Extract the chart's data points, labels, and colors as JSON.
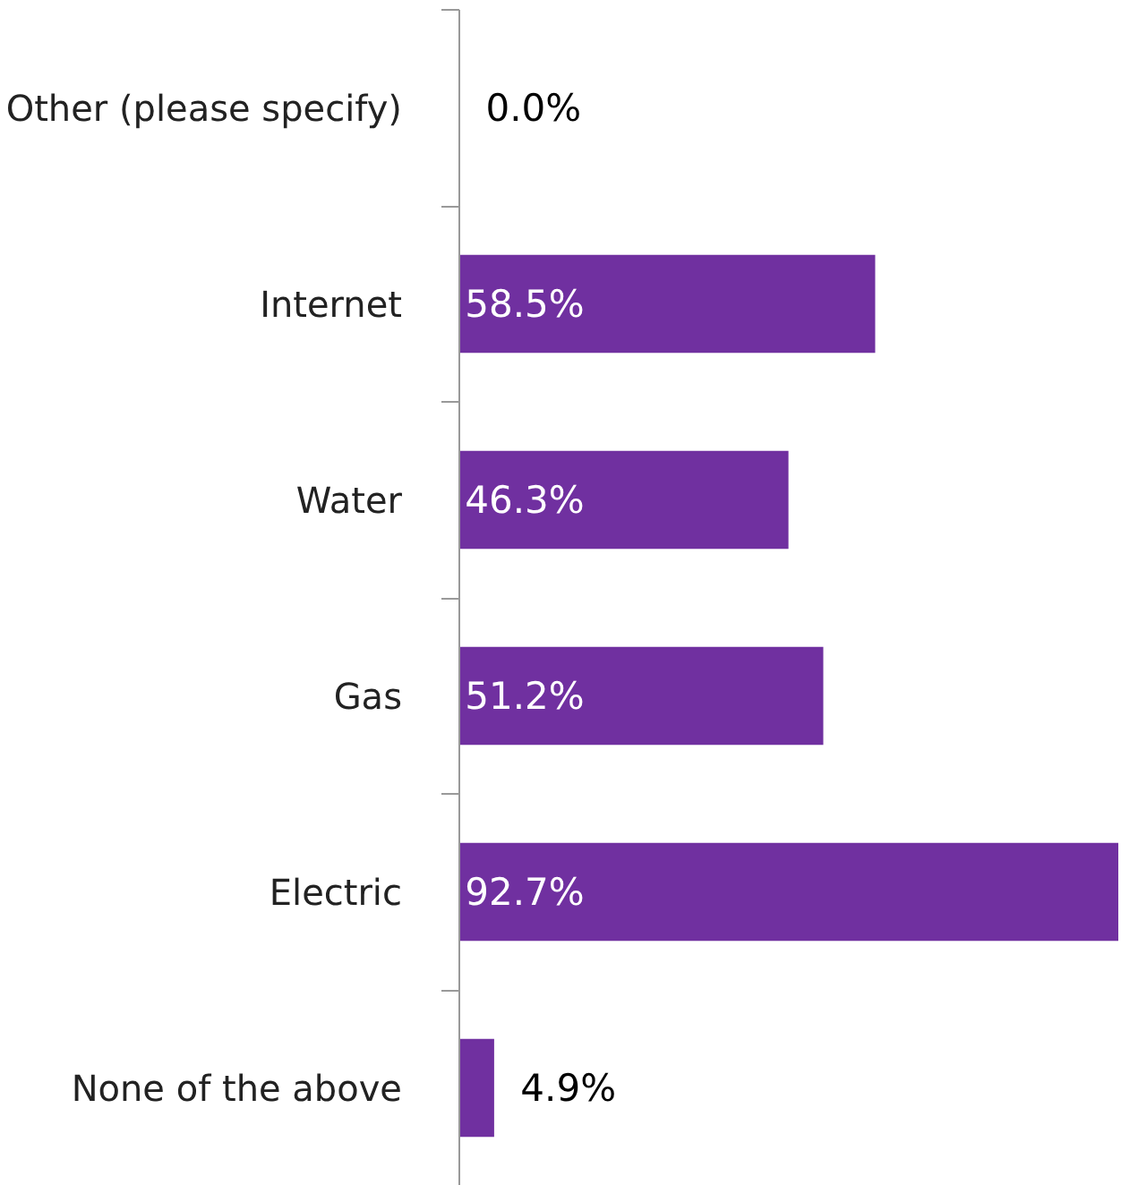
{
  "chart_data": {
    "type": "bar",
    "orientation": "horizontal",
    "categories": [
      "Other (please specify)",
      "Internet",
      "Water",
      "Gas",
      "Electric",
      "None of the above"
    ],
    "values": [
      0.0,
      58.5,
      46.3,
      51.2,
      92.7,
      4.9
    ],
    "value_labels": [
      "0.0%",
      "58.5%",
      "46.3%",
      "51.2%",
      "92.7%",
      "4.9%"
    ],
    "color": "#7030a0",
    "grid": false
  }
}
